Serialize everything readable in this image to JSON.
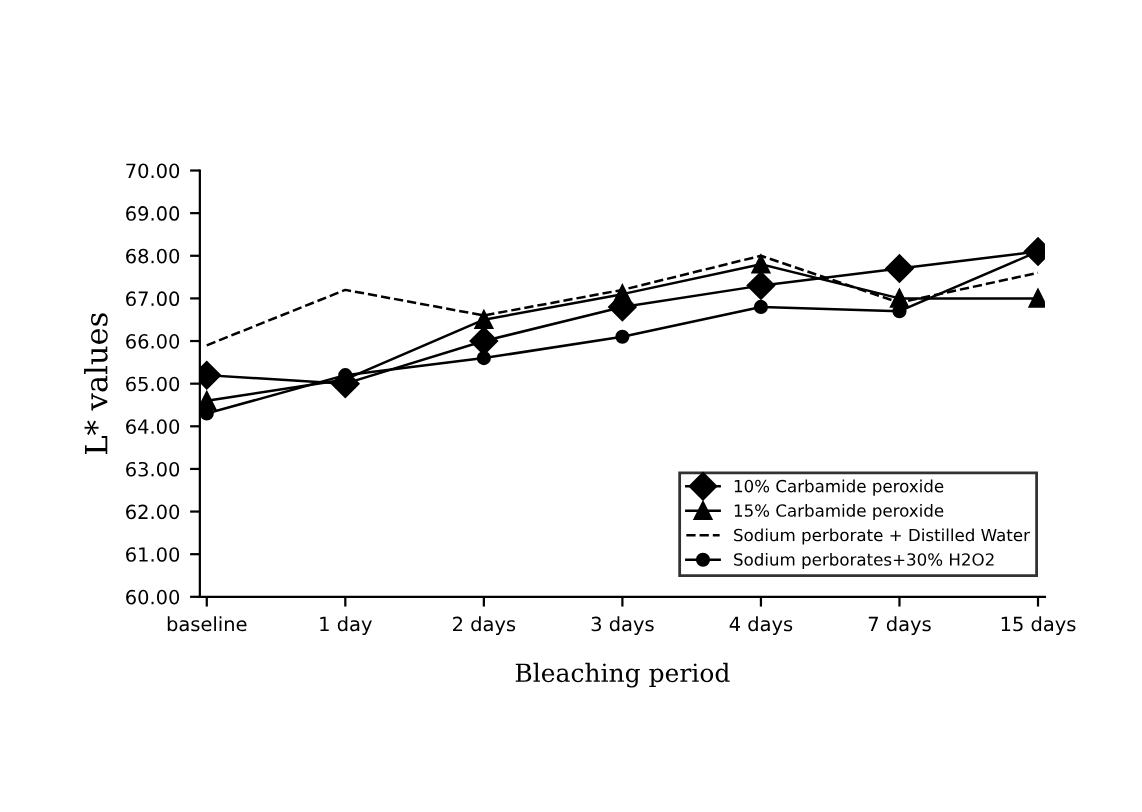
{
  "chart_data": {
    "type": "line",
    "xlabel": "Bleaching period",
    "ylabel": "L* values",
    "categories": [
      "baseline",
      "1 day",
      "2 days",
      "3 days",
      "4 days",
      "7 days",
      "15 days"
    ],
    "series": [
      {
        "name": "10% Carbamide peroxide",
        "color": "#000000",
        "marker": "diamond",
        "line_style": "solid",
        "values": [
          65.2,
          65.0,
          66.0,
          66.8,
          67.3,
          67.7,
          68.1
        ]
      },
      {
        "name": "15% Carbamide peroxide",
        "color": "#000000",
        "marker": "triangle",
        "line_style": "solid",
        "values": [
          64.6,
          65.1,
          66.5,
          67.1,
          67.8,
          67.0,
          67.0
        ]
      },
      {
        "name": "Sodium perborate + Distilled Water",
        "color": "#000000",
        "marker": "none",
        "line_style": "dashed",
        "values": [
          65.9,
          67.2,
          66.6,
          67.2,
          68.0,
          66.9,
          67.6
        ]
      },
      {
        "name": "Sodium perborates+30% H2O2",
        "color": "#000000",
        "marker": "circle",
        "line_style": "solid",
        "values": [
          64.3,
          65.2,
          65.6,
          66.1,
          66.8,
          66.7,
          68.1
        ]
      }
    ],
    "ylim": [
      60,
      70
    ],
    "yticks": [
      {
        "value": 60,
        "label": "60.00"
      },
      {
        "value": 61,
        "label": "61.00"
      },
      {
        "value": 62,
        "label": "62.00"
      },
      {
        "value": 63,
        "label": "63.00"
      },
      {
        "value": 64,
        "label": "64.00"
      },
      {
        "value": 65,
        "label": "65.00"
      },
      {
        "value": 66,
        "label": "66.00"
      },
      {
        "value": 67,
        "label": "67.00"
      },
      {
        "value": 68,
        "label": "68.00"
      },
      {
        "value": 69,
        "label": "69.00"
      },
      {
        "value": 70,
        "label": "70.00"
      }
    ],
    "grid": false,
    "legend": "bottom right"
  }
}
